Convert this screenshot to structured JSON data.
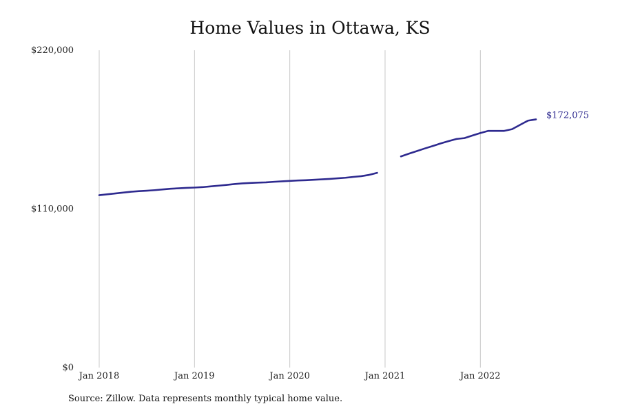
{
  "chart_data": {
    "type": "line",
    "title": "Home Values in Ottawa, KS",
    "source": "Source: Zillow. Data represents monthly typical home value.",
    "xlabel": "",
    "ylabel": "",
    "ylim": [
      0,
      220000
    ],
    "xlim": [
      "2018-01",
      "2022-11"
    ],
    "y_ticks": [
      {
        "value": 0,
        "label": "$0"
      },
      {
        "value": 110000,
        "label": "$110,000"
      },
      {
        "value": 220000,
        "label": "$220,000"
      }
    ],
    "x_ticks": [
      {
        "date": "2018-01",
        "label": "Jan 2018"
      },
      {
        "date": "2019-01",
        "label": "Jan 2019"
      },
      {
        "date": "2020-01",
        "label": "Jan 2020"
      },
      {
        "date": "2021-01",
        "label": "Jan 2021"
      },
      {
        "date": "2022-01",
        "label": "Jan 2022"
      }
    ],
    "grid": {
      "vertical": true,
      "horizontal": false
    },
    "legend": "none",
    "colors": {
      "line": "#2e2a8f",
      "grid": "#c8c8c8",
      "end_label": "#2e2a8f"
    },
    "end_label": "$172,075",
    "series": [
      {
        "segments": [
          [
            {
              "x": "2018-01",
              "y": 119500
            },
            {
              "x": "2018-02",
              "y": 120100
            },
            {
              "x": "2018-03",
              "y": 120700
            },
            {
              "x": "2018-04",
              "y": 121300
            },
            {
              "x": "2018-05",
              "y": 121900
            },
            {
              "x": "2018-06",
              "y": 122300
            },
            {
              "x": "2018-07",
              "y": 122600
            },
            {
              "x": "2018-08",
              "y": 123000
            },
            {
              "x": "2018-09",
              "y": 123500
            },
            {
              "x": "2018-10",
              "y": 124000
            },
            {
              "x": "2018-11",
              "y": 124300
            },
            {
              "x": "2018-12",
              "y": 124600
            },
            {
              "x": "2019-01",
              "y": 124800
            },
            {
              "x": "2019-02",
              "y": 125100
            },
            {
              "x": "2019-03",
              "y": 125600
            },
            {
              "x": "2019-04",
              "y": 126100
            },
            {
              "x": "2019-05",
              "y": 126600
            },
            {
              "x": "2019-06",
              "y": 127200
            },
            {
              "x": "2019-07",
              "y": 127700
            },
            {
              "x": "2019-08",
              "y": 128000
            },
            {
              "x": "2019-09",
              "y": 128200
            },
            {
              "x": "2019-10",
              "y": 128400
            },
            {
              "x": "2019-11",
              "y": 128800
            },
            {
              "x": "2019-12",
              "y": 129100
            },
            {
              "x": "2020-01",
              "y": 129400
            },
            {
              "x": "2020-02",
              "y": 129700
            },
            {
              "x": "2020-03",
              "y": 129900
            },
            {
              "x": "2020-04",
              "y": 130200
            },
            {
              "x": "2020-05",
              "y": 130500
            },
            {
              "x": "2020-06",
              "y": 130800
            },
            {
              "x": "2020-07",
              "y": 131200
            },
            {
              "x": "2020-08",
              "y": 131600
            },
            {
              "x": "2020-09",
              "y": 132200
            },
            {
              "x": "2020-10",
              "y": 132700
            },
            {
              "x": "2020-11",
              "y": 133600
            },
            {
              "x": "2020-12",
              "y": 135000
            }
          ],
          [
            {
              "x": "2021-03",
              "y": 146400
            },
            {
              "x": "2021-04",
              "y": 148300
            },
            {
              "x": "2021-05",
              "y": 150100
            },
            {
              "x": "2021-06",
              "y": 151900
            },
            {
              "x": "2021-07",
              "y": 153600
            },
            {
              "x": "2021-08",
              "y": 155400
            },
            {
              "x": "2021-09",
              "y": 157000
            },
            {
              "x": "2021-10",
              "y": 158500
            },
            {
              "x": "2021-11",
              "y": 159100
            },
            {
              "x": "2021-12",
              "y": 160900
            },
            {
              "x": "2022-01",
              "y": 162600
            },
            {
              "x": "2022-02",
              "y": 164100
            },
            {
              "x": "2022-03",
              "y": 164100
            },
            {
              "x": "2022-04",
              "y": 164100
            },
            {
              "x": "2022-05",
              "y": 165300
            },
            {
              "x": "2022-06",
              "y": 168300
            },
            {
              "x": "2022-07",
              "y": 171200
            },
            {
              "x": "2022-08",
              "y": 172075
            }
          ]
        ]
      }
    ]
  }
}
